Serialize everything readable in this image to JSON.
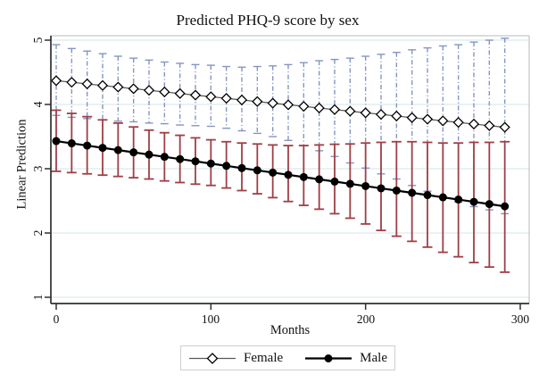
{
  "chart_data": {
    "type": "line",
    "title": "Predicted PHQ-9 score by sex",
    "xlabel": "Months",
    "ylabel": "Linear Prediction",
    "xticks": [
      0,
      100,
      200,
      300
    ],
    "yticks": [
      5,
      4,
      3,
      2,
      1
    ],
    "xlim": [
      0,
      300
    ],
    "ylim": [
      1,
      5
    ],
    "grid": "horizontal",
    "legend_position": "bottom-center",
    "x": [
      0,
      10,
      20,
      30,
      40,
      50,
      60,
      70,
      80,
      90,
      100,
      110,
      120,
      130,
      140,
      150,
      160,
      170,
      180,
      190,
      200,
      210,
      220,
      230,
      240,
      250,
      260,
      270,
      280,
      290
    ],
    "series": [
      {
        "name": "Female",
        "marker": "open-diamond",
        "line_color": "#5a5a5a",
        "marker_fill": "#ffffff",
        "marker_stroke": "#000000",
        "ci_color": "#8595c1",
        "ci_style": "dash-dot",
        "values": [
          4.37,
          4.345,
          4.32,
          4.295,
          4.27,
          4.245,
          4.22,
          4.195,
          4.17,
          4.145,
          4.12,
          4.095,
          4.07,
          4.045,
          4.02,
          3.995,
          3.97,
          3.945,
          3.92,
          3.895,
          3.87,
          3.845,
          3.82,
          3.795,
          3.77,
          3.745,
          3.72,
          3.695,
          3.67,
          3.645
        ],
        "ci_high": [
          4.93,
          4.87,
          4.83,
          4.79,
          4.75,
          4.72,
          4.69,
          4.66,
          4.64,
          4.62,
          4.61,
          4.59,
          4.58,
          4.59,
          4.6,
          4.62,
          4.65,
          4.68,
          4.7,
          4.72,
          4.75,
          4.78,
          4.81,
          4.85,
          4.88,
          4.91,
          4.93,
          4.97,
          5.0,
          5.03
        ],
        "ci_low": [
          3.83,
          3.8,
          3.78,
          3.76,
          3.74,
          3.73,
          3.71,
          3.7,
          3.68,
          3.67,
          3.66,
          3.63,
          3.59,
          3.55,
          3.5,
          3.44,
          3.36,
          3.28,
          3.19,
          3.09,
          3.01,
          2.92,
          2.84,
          2.74,
          2.65,
          2.56,
          2.48,
          2.41,
          2.36,
          2.3
        ]
      },
      {
        "name": "Male",
        "marker": "filled-circle",
        "line_color": "#000000",
        "marker_fill": "#000000",
        "marker_stroke": "#000000",
        "ci_color": "#9e3f46",
        "ci_style": "solid",
        "values": [
          3.43,
          3.395,
          3.36,
          3.325,
          3.29,
          3.255,
          3.22,
          3.185,
          3.15,
          3.115,
          3.08,
          3.045,
          3.01,
          2.975,
          2.94,
          2.905,
          2.87,
          2.835,
          2.8,
          2.765,
          2.73,
          2.695,
          2.66,
          2.625,
          2.59,
          2.555,
          2.52,
          2.485,
          2.45,
          2.415
        ],
        "ci_high": [
          3.91,
          3.86,
          3.81,
          3.76,
          3.71,
          3.65,
          3.6,
          3.56,
          3.52,
          3.48,
          3.45,
          3.42,
          3.4,
          3.385,
          3.37,
          3.36,
          3.36,
          3.37,
          3.38,
          3.385,
          3.4,
          3.41,
          3.42,
          3.42,
          3.41,
          3.4,
          3.4,
          3.41,
          3.41,
          3.42
        ],
        "ci_low": [
          2.96,
          2.94,
          2.92,
          2.9,
          2.88,
          2.86,
          2.84,
          2.81,
          2.785,
          2.76,
          2.74,
          2.7,
          2.66,
          2.61,
          2.55,
          2.49,
          2.43,
          2.37,
          2.3,
          2.23,
          2.14,
          2.04,
          1.95,
          1.87,
          1.78,
          1.7,
          1.63,
          1.54,
          1.47,
          1.39
        ]
      }
    ],
    "colors": {
      "gridline": "#dce9ed",
      "frame": "#b9b9b9",
      "axis": "#303030",
      "female_ci": "#8595c1",
      "male_ci": "#9e3f46"
    }
  }
}
